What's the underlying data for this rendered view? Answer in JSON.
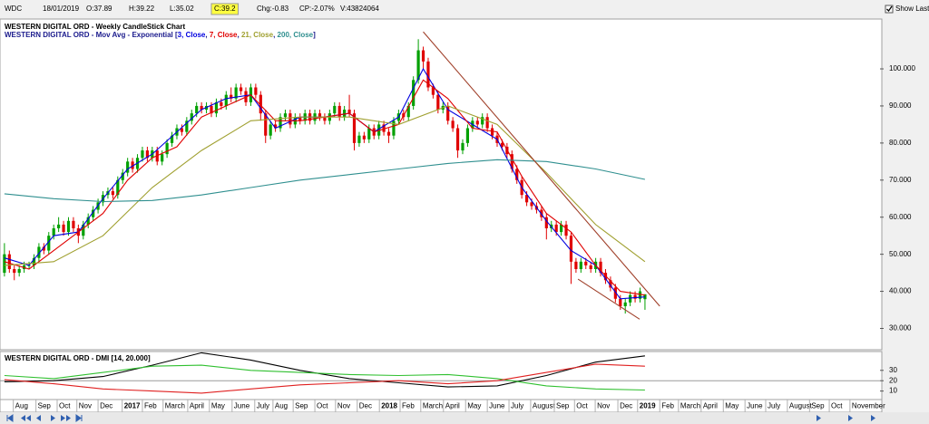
{
  "toolbar": {
    "symbol": "WDC",
    "date": "18/01/2019",
    "fields": [
      "O:37.89",
      "H:39.22",
      "L:35.02",
      "C:39.2",
      "Chg:-0.83",
      "CP:-2.07%",
      "V:43824064"
    ],
    "highlight": 3,
    "show_last": "Show Last"
  },
  "chart_data": [
    {
      "type": "candlestick",
      "title": "WESTERN DIGITAL ORD - Weekly CandleStick Chart",
      "legend_prefix": "WESTERN DIGITAL ORD - Mov Avg - Exponential [",
      "legend_separator": ", ",
      "legend_suffix": "]",
      "up_color": "#00a000",
      "down_color": "#e00000",
      "xlim": [
        -0.9,
        177.7
      ],
      "ylim": [
        24.5,
        113.2
      ],
      "yticks": [
        {
          "value": 30,
          "label": "30.000"
        },
        {
          "value": 40,
          "label": "40.000"
        },
        {
          "value": 50,
          "label": "50.000"
        },
        {
          "value": 60,
          "label": "60.000"
        },
        {
          "value": 70,
          "label": "70.000"
        },
        {
          "value": 80,
          "label": "80.000"
        },
        {
          "value": 90,
          "label": "90.000"
        },
        {
          "value": 100,
          "label": "100.000"
        }
      ],
      "open": [
        45,
        50,
        46,
        45,
        46,
        47,
        47,
        49,
        52,
        51,
        55,
        57,
        58,
        56,
        59,
        57,
        55,
        58,
        60,
        62,
        64,
        66,
        67,
        66,
        70,
        72,
        75,
        73,
        76,
        78,
        76,
        78,
        75,
        77,
        80,
        82,
        84,
        83,
        86,
        88,
        90,
        89,
        90,
        88,
        91,
        90,
        93,
        92,
        95,
        94,
        91,
        95,
        93,
        88,
        82,
        85,
        84,
        87,
        88,
        85,
        87,
        86,
        88,
        86,
        88,
        87,
        86,
        88,
        90,
        87,
        89,
        88,
        80,
        82,
        81,
        84,
        82,
        85,
        83,
        82,
        86,
        88,
        87,
        90,
        97,
        105,
        102,
        95,
        93,
        89,
        90,
        86,
        84,
        78,
        80,
        84,
        86,
        85,
        87,
        84,
        82,
        80,
        79,
        77,
        73,
        70,
        66,
        64,
        63,
        62,
        60,
        57,
        58,
        56,
        58,
        55,
        48,
        46,
        48,
        47,
        46,
        48,
        45,
        43,
        41,
        38,
        36,
        37,
        39,
        38,
        37.89
      ],
      "high": [
        53,
        51,
        47,
        47,
        48,
        48,
        50,
        53,
        53,
        56,
        58,
        60,
        59,
        60,
        60,
        58,
        59,
        61,
        63,
        65,
        67,
        68,
        68,
        71,
        73,
        76,
        76,
        77,
        79,
        79,
        79,
        79,
        78,
        81,
        83,
        85,
        85,
        87,
        89,
        91,
        91,
        91,
        91,
        92,
        92,
        94,
        95,
        96,
        96,
        95,
        96,
        96,
        94,
        89,
        86,
        86,
        88,
        89,
        89,
        88,
        88,
        89,
        89,
        89,
        89,
        88,
        89,
        91,
        91,
        90,
        93,
        89,
        83,
        83,
        85,
        85,
        86,
        86,
        84,
        87,
        89,
        89,
        91,
        98,
        108,
        106,
        103,
        96,
        94,
        91,
        91,
        87,
        85,
        81,
        85,
        87,
        87,
        88,
        88,
        85,
        83,
        81,
        80,
        78,
        74,
        71,
        67,
        65,
        64,
        63,
        61,
        59,
        59,
        59,
        59,
        56,
        49,
        49,
        49,
        48,
        49,
        49,
        46,
        44,
        42,
        39,
        38,
        40,
        40,
        41,
        39.22
      ],
      "low": [
        44,
        45,
        43,
        44,
        45,
        46,
        46,
        48,
        50,
        50,
        54,
        56,
        55,
        55,
        56,
        53,
        54,
        57,
        59,
        61,
        63,
        65,
        65,
        65,
        69,
        71,
        72,
        72,
        75,
        75,
        75,
        74,
        74,
        76,
        79,
        81,
        82,
        82,
        85,
        87,
        88,
        88,
        87,
        87,
        89,
        89,
        91,
        91,
        93,
        90,
        90,
        92,
        86,
        80,
        81,
        83,
        83,
        86,
        84,
        84,
        85,
        85,
        85,
        85,
        86,
        85,
        85,
        87,
        86,
        86,
        87,
        78,
        79,
        80,
        80,
        81,
        81,
        82,
        80,
        81,
        85,
        86,
        86,
        89,
        96,
        100,
        94,
        92,
        88,
        88,
        85,
        83,
        76,
        77,
        79,
        83,
        84,
        84,
        83,
        81,
        79,
        78,
        76,
        72,
        69,
        65,
        63,
        62,
        61,
        59,
        54,
        56,
        55,
        55,
        54,
        42,
        45,
        45,
        46,
        45,
        45,
        44,
        42,
        40,
        37,
        35,
        34,
        36,
        37,
        37,
        35.02
      ],
      "close": [
        50,
        46,
        45,
        46,
        47,
        47,
        49,
        52,
        51,
        55,
        57,
        58,
        56,
        59,
        57,
        55,
        58,
        60,
        62,
        64,
        66,
        67,
        66,
        70,
        72,
        75,
        73,
        76,
        78,
        76,
        78,
        75,
        77,
        80,
        82,
        84,
        83,
        86,
        88,
        90,
        89,
        90,
        88,
        91,
        90,
        93,
        92,
        95,
        94,
        91,
        95,
        93,
        88,
        82,
        85,
        84,
        87,
        88,
        85,
        87,
        86,
        88,
        86,
        88,
        87,
        86,
        88,
        90,
        87,
        89,
        88,
        80,
        82,
        81,
        84,
        82,
        85,
        83,
        82,
        86,
        88,
        87,
        90,
        97,
        105,
        102,
        95,
        93,
        89,
        90,
        86,
        84,
        78,
        80,
        84,
        86,
        85,
        87,
        84,
        82,
        80,
        79,
        77,
        73,
        70,
        66,
        64,
        63,
        62,
        60,
        57,
        58,
        56,
        58,
        55,
        48,
        46,
        48,
        47,
        46,
        48,
        45,
        43,
        41,
        38,
        36,
        37,
        39,
        38,
        40,
        39.2
      ],
      "series": [
        {
          "name": "3, Close",
          "color": "#0000e0",
          "x": [
            0,
            5,
            10,
            15,
            20,
            25,
            30,
            35,
            40,
            45,
            50,
            55,
            60,
            65,
            70,
            75,
            80,
            85,
            90,
            95,
            100,
            105,
            110,
            115,
            120,
            125,
            130
          ],
          "values": [
            49,
            47,
            55,
            56,
            65,
            73,
            77,
            83,
            89,
            92,
            93,
            84,
            87,
            87,
            88,
            83,
            87,
            100,
            89,
            85,
            81,
            68,
            59,
            51,
            47,
            38,
            38.5
          ]
        },
        {
          "name": "7, Close",
          "color": "#e00000",
          "x": [
            0,
            5,
            10,
            15,
            20,
            25,
            30,
            35,
            40,
            45,
            50,
            55,
            60,
            65,
            70,
            75,
            80,
            85,
            90,
            95,
            100,
            105,
            110,
            115,
            120,
            125,
            130
          ],
          "values": [
            48,
            46,
            51,
            56,
            61,
            70,
            76,
            79,
            87,
            90,
            93,
            86,
            86,
            87,
            88,
            83,
            85,
            97,
            92,
            84,
            83,
            71,
            61,
            56,
            47,
            40,
            39
          ]
        },
        {
          "name": "21, Close",
          "color": "#a0a030",
          "x": [
            0,
            10,
            20,
            30,
            40,
            50,
            60,
            70,
            80,
            90,
            100,
            110,
            120,
            130
          ],
          "values": [
            47,
            48,
            55,
            68,
            78,
            86,
            87,
            87,
            85,
            90,
            85,
            72,
            58,
            48
          ]
        },
        {
          "name": "200, Close",
          "color": "#2f8f8f",
          "x": [
            0,
            10,
            20,
            30,
            40,
            50,
            60,
            70,
            80,
            90,
            100,
            110,
            120,
            130
          ],
          "values": [
            66.3,
            65,
            64.2,
            64.5,
            66,
            68,
            70,
            71.5,
            73,
            74.5,
            75.5,
            75,
            73,
            70.2
          ]
        }
      ],
      "trendlines": [
        {
          "color": "#a0402a",
          "x": [
            85,
            133
          ],
          "values": [
            110,
            36
          ]
        },
        {
          "color": "#a0402a",
          "x": [
            116.4,
            128.9
          ],
          "values": [
            43.3,
            32.5
          ]
        }
      ]
    },
    {
      "type": "line",
      "title": "WESTERN DIGITAL ORD - DMI [14, 20.000]",
      "xlim": [
        -0.9,
        177.7
      ],
      "ylim": [
        1.8,
        48.2
      ],
      "yticks": [
        10,
        20,
        30
      ],
      "threshold": 20,
      "xticks": [
        {
          "value": 1.8,
          "label": "Aug"
        },
        {
          "value": 6.4,
          "label": "Sep"
        },
        {
          "value": 10.7,
          "label": "Oct"
        },
        {
          "value": 14.7,
          "label": "Nov"
        },
        {
          "value": 19,
          "label": "Dec"
        },
        {
          "value": 23.9,
          "label": "2017"
        },
        {
          "value": 28,
          "label": "Feb"
        },
        {
          "value": 32.2,
          "label": "March"
        },
        {
          "value": 37.2,
          "label": "April"
        },
        {
          "value": 41.6,
          "label": "May"
        },
        {
          "value": 46.2,
          "label": "June"
        },
        {
          "value": 50.8,
          "label": "July"
        },
        {
          "value": 54.5,
          "label": "Aug"
        },
        {
          "value": 58.6,
          "label": "Sep"
        },
        {
          "value": 63,
          "label": "Oct"
        },
        {
          "value": 67.2,
          "label": "Nov"
        },
        {
          "value": 71.6,
          "label": "Dec"
        },
        {
          "value": 76.1,
          "label": "2018"
        },
        {
          "value": 80.3,
          "label": "Feb"
        },
        {
          "value": 84.5,
          "label": "March"
        },
        {
          "value": 89.1,
          "label": "April"
        },
        {
          "value": 93.6,
          "label": "May"
        },
        {
          "value": 98,
          "label": "June"
        },
        {
          "value": 102.4,
          "label": "July"
        },
        {
          "value": 106.8,
          "label": "August"
        },
        {
          "value": 111.6,
          "label": "Sep"
        },
        {
          "value": 115.7,
          "label": "Oct"
        },
        {
          "value": 119.9,
          "label": "Nov"
        },
        {
          "value": 124.5,
          "label": "Dec"
        },
        {
          "value": 128.5,
          "label": "2019"
        },
        {
          "value": 133,
          "label": "Feb"
        },
        {
          "value": 136.8,
          "label": "March"
        },
        {
          "value": 141.4,
          "label": "April"
        },
        {
          "value": 145.9,
          "label": "May"
        },
        {
          "value": 150.3,
          "label": "June"
        },
        {
          "value": 154.5,
          "label": "July"
        },
        {
          "value": 158.9,
          "label": "August"
        },
        {
          "value": 163.4,
          "label": "Sep"
        },
        {
          "value": 167.4,
          "label": "Oct"
        },
        {
          "value": 171.6,
          "label": "November"
        }
      ],
      "series": [
        {
          "color": "#000000",
          "x": [
            0,
            10,
            20,
            30,
            40,
            50,
            60,
            70,
            80,
            90,
            100,
            110,
            120,
            130
          ],
          "values": [
            19,
            20,
            24,
            35,
            47,
            40,
            30,
            22,
            18,
            14,
            15,
            25,
            38,
            44
          ]
        },
        {
          "color": "#30c030",
          "x": [
            0,
            10,
            20,
            30,
            40,
            50,
            60,
            70,
            80,
            90,
            100,
            110,
            120,
            130
          ],
          "values": [
            25,
            22,
            28,
            34,
            35,
            30,
            28,
            26,
            25,
            26,
            22,
            15,
            12,
            11
          ]
        },
        {
          "color": "#e02020",
          "x": [
            0,
            10,
            20,
            30,
            40,
            50,
            60,
            70,
            80,
            90,
            100,
            110,
            120,
            130
          ],
          "values": [
            21,
            17,
            12,
            10,
            8,
            12,
            16,
            18,
            20,
            17,
            20,
            28,
            36,
            34
          ]
        }
      ]
    }
  ]
}
